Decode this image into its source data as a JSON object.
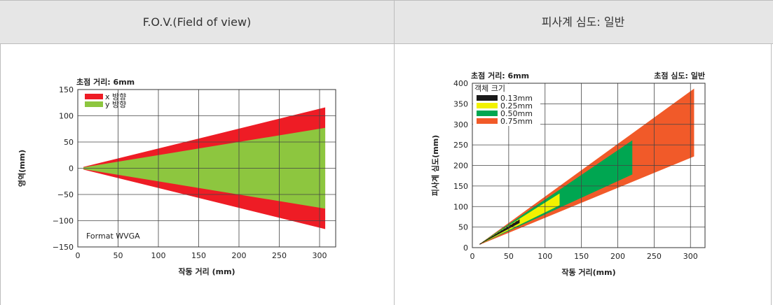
{
  "header": {
    "left_title": "F.O.V.(Field of view)",
    "right_title": "피사계 심도: 일반"
  },
  "colors": {
    "header_bg": "#e6e6e6",
    "fov_x": "#ee1c25",
    "fov_y": "#8dc63f",
    "dof_013": "#1a1a1a",
    "dof_025": "#f2f200",
    "dof_050": "#00a651",
    "dof_075": "#f15a29"
  },
  "chart_data": [
    {
      "type": "area",
      "top_label": "초점 거리: 6mm",
      "annotation": "Format WVGA",
      "xlabel": "작동 거리 (mm)",
      "ylabel": "영역(mm)",
      "xlim": [
        0,
        320
      ],
      "ylim": [
        -150,
        150
      ],
      "x_ticks": [
        0,
        50,
        100,
        150,
        200,
        250,
        300
      ],
      "y_ticks": [
        150,
        100,
        50,
        0,
        -50,
        -100,
        -150
      ],
      "y_tick_labels": [
        "150",
        "100",
        "50",
        "0",
        "−50",
        "−100",
        "−150"
      ],
      "grid": true,
      "legend": "top-left",
      "series": [
        {
          "name": "x 방향",
          "color": "#ee1c25",
          "x": [
            7,
            307
          ],
          "upper": [
            2.5,
            116
          ],
          "lower": [
            -2.5,
            -116
          ]
        },
        {
          "name": "y 방향",
          "color": "#8dc63f",
          "x": [
            7,
            307
          ],
          "upper": [
            1.7,
            77
          ],
          "lower": [
            -1.7,
            -77
          ]
        }
      ]
    },
    {
      "type": "area",
      "top_label": "초점 거리: 6mm",
      "top_right_label": "초점 심도: 일반",
      "xlabel": "작동 거리(mm)",
      "ylabel": "피사계 심도(mm)",
      "xlim": [
        0,
        320
      ],
      "ylim": [
        0,
        400
      ],
      "x_ticks": [
        0,
        50,
        100,
        150,
        200,
        250,
        300
      ],
      "y_ticks": [
        0,
        50,
        100,
        150,
        200,
        250,
        300,
        350,
        400
      ],
      "grid": true,
      "legend_title": "객체 크기",
      "legend": "top-left",
      "series": [
        {
          "name": "0.75mm",
          "color": "#f15a29",
          "x": [
            10,
            305
          ],
          "upper": [
            9,
            387
          ],
          "lower": [
            7,
            222
          ]
        },
        {
          "name": "0.50mm",
          "color": "#00a651",
          "x": [
            10,
            220
          ],
          "upper": [
            9,
            261
          ],
          "lower": [
            8,
            178
          ]
        },
        {
          "name": "0.25mm",
          "color": "#f2f200",
          "x": [
            10,
            120
          ],
          "upper": [
            9,
            132
          ],
          "lower": [
            8,
            103
          ]
        },
        {
          "name": "0.13mm",
          "color": "#1a1a1a",
          "x": [
            10,
            65
          ],
          "upper": [
            9,
            68
          ],
          "lower": [
            8,
            60
          ]
        }
      ]
    }
  ]
}
